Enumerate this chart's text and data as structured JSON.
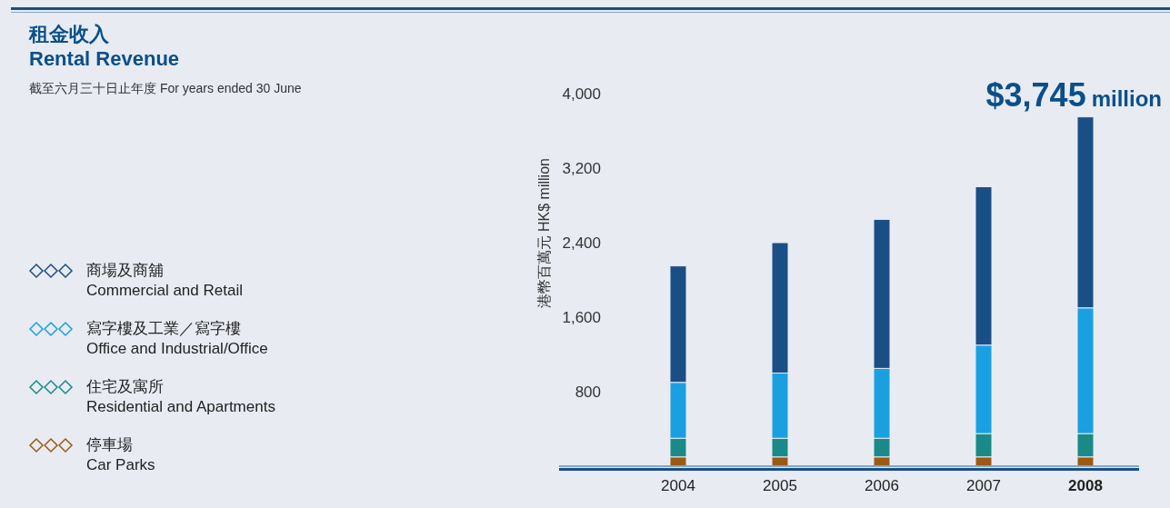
{
  "chart_data": {
    "type": "bar",
    "stacked": true,
    "title": "租金收入\nRental Revenue",
    "subtitle": "截至六月三十日止年度 For years ended 30 June",
    "ylabel": "港幣百萬元 HK$ million",
    "annotations": [
      "$3,745 million"
    ],
    "categories": [
      "2004",
      "2005",
      "2006",
      "2007",
      "2008"
    ],
    "series": [
      {
        "name": "停車場\nCar Parks",
        "color": "#9a5a14",
        "values": [
          100,
          100,
          100,
          100,
          100
        ]
      },
      {
        "name": "住宅及寓所\nResidential and Apartments",
        "color": "#1a8a88",
        "values": [
          200,
          200,
          200,
          250,
          250
        ]
      },
      {
        "name": "寫字樓及工業／寫字樓\nOffice and Industrial/Office",
        "color": "#1aa0e0",
        "values": [
          600,
          700,
          750,
          950,
          1350
        ]
      },
      {
        "name": "商場及商舖\nCommercial and Retail",
        "color": "#1a4f86",
        "values": [
          1250,
          1400,
          1600,
          1700,
          2050
        ]
      }
    ],
    "ylim": [
      0,
      4000
    ],
    "yticks": [
      800,
      {
        "value": 1600,
        "label": "1,600"
      },
      {
        "value": 2400,
        "label": "2,400"
      },
      {
        "value": 3200,
        "label": "3,200"
      },
      {
        "value": 4000,
        "label": "4,000"
      }
    ],
    "legend": "left",
    "grid": false
  }
}
